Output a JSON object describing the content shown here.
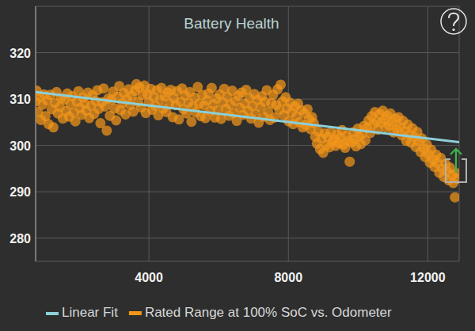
{
  "chart_data": {
    "type": "scatter",
    "title": "Battery Health",
    "xlim": [
      750,
      12900
    ],
    "ylim": [
      275,
      330
    ],
    "xticks": [
      4000,
      8000,
      12000
    ],
    "yticks": [
      280,
      290,
      300,
      310,
      320
    ],
    "grid": true,
    "legend": "bottom",
    "series": [
      {
        "name": "Linear Fit",
        "type": "line",
        "color": "#8ccfd8",
        "line_style": "solid",
        "x": [
          750,
          12900
        ],
        "values": [
          311.5,
          300.7
        ]
      },
      {
        "name": "Rated Range at 100% SoC vs. Odometer",
        "type": "scatter",
        "color": "#f3961a",
        "marker": "circle",
        "x": [
          750,
          780,
          820,
          860,
          900,
          950,
          990,
          1030,
          1080,
          1120,
          1170,
          1210,
          1260,
          1300,
          1350,
          1390,
          1440,
          1480,
          1530,
          1570,
          1620,
          1660,
          1710,
          1750,
          1800,
          1840,
          1890,
          1930,
          1980,
          2020,
          2070,
          2110,
          2160,
          2200,
          2250,
          2290,
          2340,
          2380,
          2430,
          2470,
          2520,
          2560,
          2610,
          2650,
          2700,
          2740,
          2790,
          2830,
          2880,
          2920,
          2970,
          3010,
          3060,
          3100,
          3150,
          3190,
          3240,
          3280,
          3330,
          3370,
          3420,
          3460,
          3510,
          3550,
          3600,
          3640,
          3690,
          3730,
          3780,
          3820,
          3870,
          3910,
          3960,
          4000,
          4050,
          4090,
          4140,
          4180,
          4230,
          4270,
          4320,
          4360,
          4410,
          4450,
          4500,
          4540,
          4590,
          4630,
          4680,
          4720,
          4770,
          4810,
          4860,
          4900,
          4950,
          4990,
          5040,
          5080,
          5130,
          5170,
          5220,
          5260,
          5310,
          5350,
          5400,
          5440,
          5490,
          5530,
          5580,
          5620,
          5670,
          5710,
          5760,
          5800,
          5850,
          5890,
          5940,
          5980,
          6030,
          6070,
          6120,
          6160,
          6210,
          6250,
          6300,
          6340,
          6390,
          6430,
          6480,
          6520,
          6570,
          6610,
          6660,
          6700,
          6750,
          6790,
          6840,
          6880,
          6930,
          6970,
          7020,
          7060,
          7110,
          7150,
          7200,
          7240,
          7290,
          7330,
          7380,
          7420,
          7470,
          7510,
          7560,
          7600,
          7650,
          7690,
          7740,
          7780,
          7830,
          7870,
          7920,
          7960,
          8010,
          8050,
          8100,
          8140,
          8190,
          8230,
          8280,
          8320,
          8370,
          8410,
          8460,
          8500,
          8550,
          8590,
          8640,
          8680,
          8730,
          8770,
          8820,
          8860,
          8910,
          8950,
          9000,
          9040,
          9090,
          9130,
          9180,
          9220,
          9270,
          9310,
          9360,
          9400,
          9450,
          9490,
          9540,
          9580,
          9630,
          9670,
          9720,
          9760,
          9810,
          9850,
          9900,
          9940,
          9990,
          10030,
          10080,
          10120,
          10170,
          10210,
          10260,
          10300,
          10350,
          10390,
          10440,
          10480,
          10530,
          10570,
          10620,
          10660,
          10710,
          10750,
          10800,
          10840,
          10890,
          10930,
          10980,
          11020,
          11070,
          11110,
          11160,
          11200,
          11250,
          11290,
          11340,
          11380,
          11430,
          11470,
          11520,
          11560,
          11610,
          11650,
          11700,
          11740,
          11790,
          11830,
          11880,
          11920,
          11970,
          12010,
          12060,
          12100,
          12150,
          12190,
          12240,
          12280,
          12330,
          12370,
          12420,
          12460,
          12510,
          12550,
          12600,
          12640,
          12690,
          12730,
          12780,
          12820,
          12860
        ],
        "values": [
          309.5,
          311.8,
          307.2,
          310.4,
          305.5,
          308.8,
          311.0,
          306.3,
          309.7,
          304.6,
          310.9,
          307.8,
          303.9,
          309.2,
          311.5,
          306.9,
          308.3,
          310.2,
          305.8,
          309.9,
          307.4,
          311.2,
          306.2,
          308.9,
          310.6,
          307.1,
          305.2,
          309.4,
          311.7,
          308.1,
          306.6,
          310.3,
          309.0,
          307.5,
          311.4,
          305.9,
          308.6,
          310.8,
          306.8,
          309.6,
          311.9,
          307.9,
          304.8,
          309.3,
          312.3,
          308.4,
          303.2,
          310.1,
          306.4,
          309.8,
          311.6,
          308.0,
          305.4,
          310.5,
          312.8,
          307.6,
          309.1,
          311.3,
          306.7,
          310.0,
          312.1,
          308.7,
          310.7,
          307.3,
          311.8,
          313.2,
          309.4,
          312.5,
          308.2,
          310.9,
          312.9,
          307.0,
          311.1,
          309.3,
          312.2,
          307.7,
          310.4,
          308.5,
          311.9,
          306.5,
          309.9,
          312.4,
          308.0,
          310.6,
          307.2,
          311.4,
          309.1,
          312.0,
          306.1,
          310.2,
          308.7,
          311.7,
          305.6,
          309.5,
          312.3,
          307.8,
          310.8,
          306.9,
          309.2,
          311.5,
          305.1,
          308.4,
          310.3,
          307.1,
          312.6,
          309.0,
          306.3,
          310.9,
          308.6,
          305.9,
          309.7,
          311.2,
          307.4,
          312.4,
          308.9,
          306.0,
          310.1,
          307.6,
          311.0,
          305.7,
          309.3,
          312.2,
          307.9,
          310.5,
          306.4,
          308.8,
          311.8,
          307.0,
          309.6,
          305.3,
          310.7,
          308.1,
          311.4,
          306.6,
          309.0,
          312.0,
          307.5,
          310.2,
          305.8,
          308.5,
          311.1,
          306.8,
          309.8,
          304.9,
          308.3,
          310.6,
          306.2,
          309.4,
          311.9,
          307.3,
          305.5,
          309.1,
          310.9,
          306.0,
          308.7,
          312.1,
          307.7,
          313.1,
          309.5,
          306.5,
          310.4,
          308.0,
          305.2,
          309.2,
          307.1,
          304.6,
          308.4,
          306.3,
          309.0,
          305.0,
          307.6,
          303.9,
          306.9,
          304.4,
          307.8,
          305.7,
          303.5,
          306.1,
          304.8,
          301.9,
          300.4,
          303.0,
          299.2,
          301.5,
          298.4,
          302.6,
          300.1,
          301.8,
          299.6,
          302.9,
          300.8,
          301.3,
          299.9,
          302.4,
          300.5,
          301.7,
          303.3,
          300.2,
          299.5,
          302.1,
          301.0,
          296.5,
          300.6,
          302.8,
          301.4,
          299.8,
          303.6,
          301.9,
          300.3,
          302.5,
          304.2,
          301.1,
          303.8,
          305.4,
          302.7,
          306.3,
          304.6,
          307.2,
          305.1,
          303.4,
          306.8,
          304.9,
          307.5,
          305.6,
          303.9,
          306.4,
          304.3,
          306.9,
          305.0,
          302.8,
          305.8,
          303.6,
          306.1,
          304.0,
          302.2,
          305.3,
          303.1,
          301.0,
          304.5,
          302.4,
          300.6,
          303.7,
          301.8,
          299.7,
          302.9,
          300.9,
          298.6,
          301.5,
          299.4,
          297.5,
          300.2,
          298.2,
          296.3,
          299.1,
          297.0,
          295.4,
          298.0,
          296.2,
          294.1,
          297.3,
          295.0,
          293.2,
          296.0,
          294.4,
          292.5,
          295.2,
          293.6,
          291.9,
          288.8,
          294.0,
          292.8
        ]
      }
    ]
  }
}
